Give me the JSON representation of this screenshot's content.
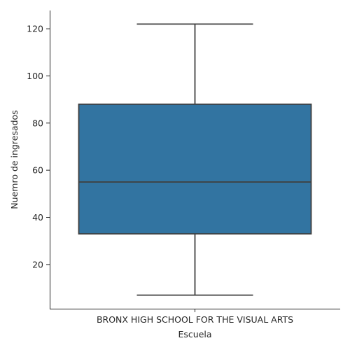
{
  "chart_data": {
    "type": "box",
    "title": "",
    "xlabel": "Escuela",
    "ylabel": "Nuemro de ingresados",
    "categories": [
      "BRONX HIGH SCHOOL FOR THE VISUAL ARTS"
    ],
    "boxes": [
      {
        "category": "BRONX HIGH SCHOOL FOR THE VISUAL ARTS",
        "min": 7,
        "q1": 33,
        "median": 55,
        "q3": 88,
        "max": 122
      }
    ],
    "yticks": [
      20,
      40,
      60,
      80,
      100,
      120
    ],
    "ylim": [
      1.25,
      127.75
    ],
    "grid": false,
    "box_color": "#3274a1",
    "line_color": "#3f3f3f"
  }
}
